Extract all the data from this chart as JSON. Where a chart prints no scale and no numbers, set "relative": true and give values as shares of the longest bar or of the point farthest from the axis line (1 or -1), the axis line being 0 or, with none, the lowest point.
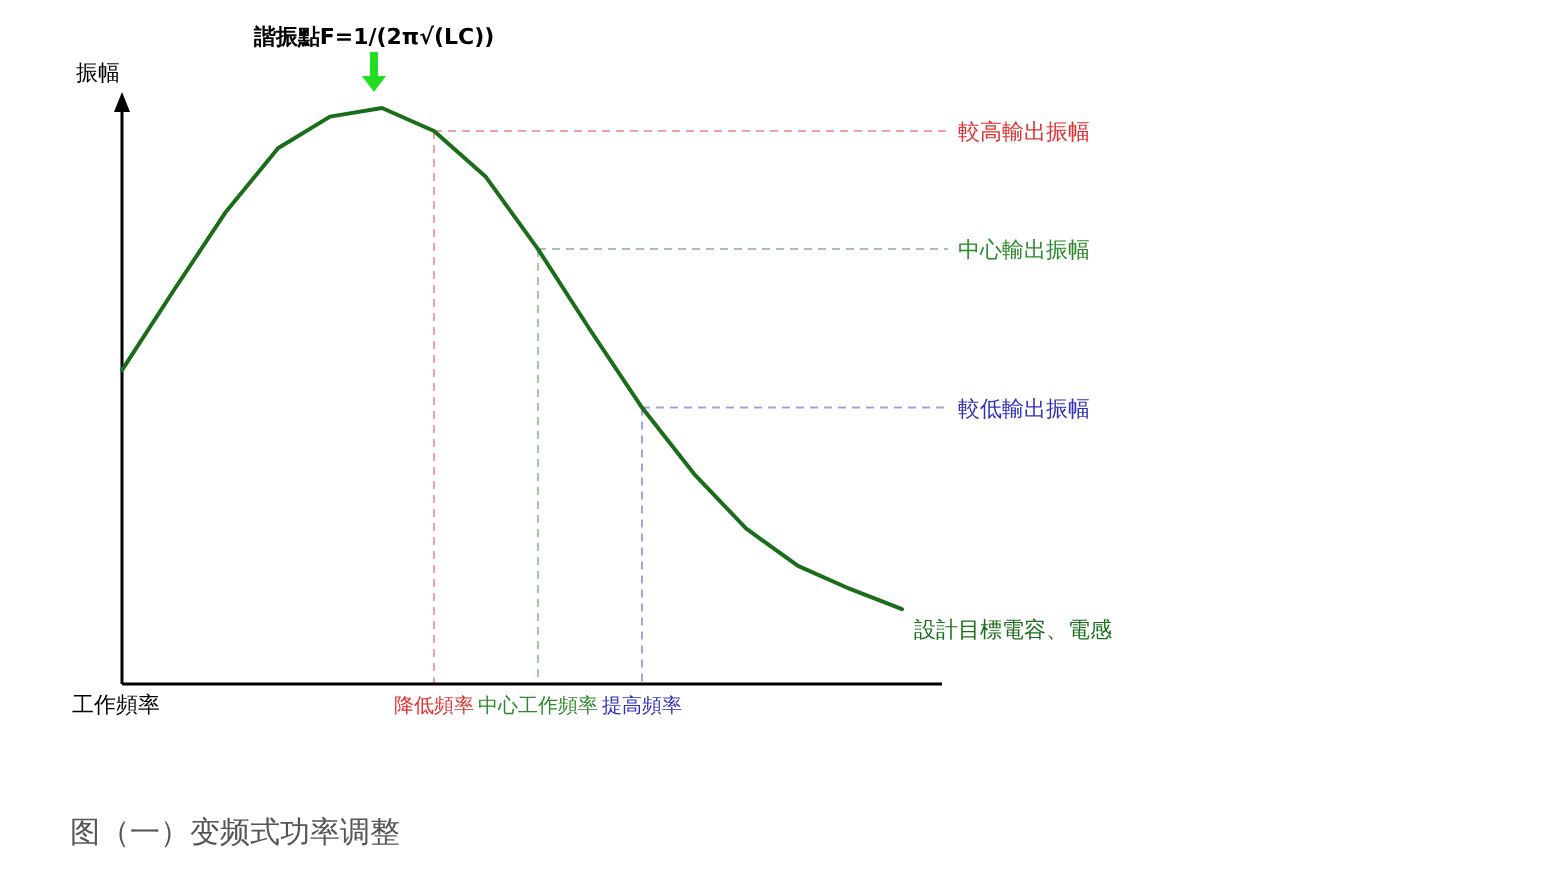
{
  "chart_data": {
    "type": "line",
    "relative": true,
    "xlabel": "工作頻率",
    "ylabel": "振幅",
    "categories": [
      null,
      null,
      null,
      null,
      null,
      null,
      "降低頻率",
      null,
      "中心工作頻率",
      null,
      "提高頻率",
      null,
      null,
      null,
      null,
      null
    ],
    "series": [
      {
        "name": "設計目標電容、電感",
        "color": "#1a6e1a",
        "values": [
          0.545,
          0.684,
          0.82,
          0.93,
          0.985,
          1,
          0.96,
          0.88,
          0.755,
          0.615,
          0.48,
          0.365,
          0.27,
          0.205,
          0.165,
          0.13
        ]
      }
    ],
    "ref_lines": [
      {
        "axis": "y",
        "value": 0.96,
        "label": "較高輸出振幅",
        "color": "#e03030"
      },
      {
        "axis": "y",
        "value": 0.755,
        "label": "中心輸出振幅",
        "color": "#2a8a2a"
      },
      {
        "axis": "y",
        "value": 0.48,
        "label": "較低輸出振幅",
        "color": "#3030c0"
      },
      {
        "axis": "x",
        "value": "降低頻率",
        "color": "#e03030"
      },
      {
        "axis": "x",
        "value": "中心工作頻率",
        "color": "#2a8a2a"
      },
      {
        "axis": "x",
        "value": "提高頻率",
        "color": "#3030c0"
      }
    ],
    "annotations": [
      "諧振點F=1/(2π√(LC))",
      "图（一）变频式功率调整"
    ],
    "marker": "none",
    "line_style": "solid"
  }
}
